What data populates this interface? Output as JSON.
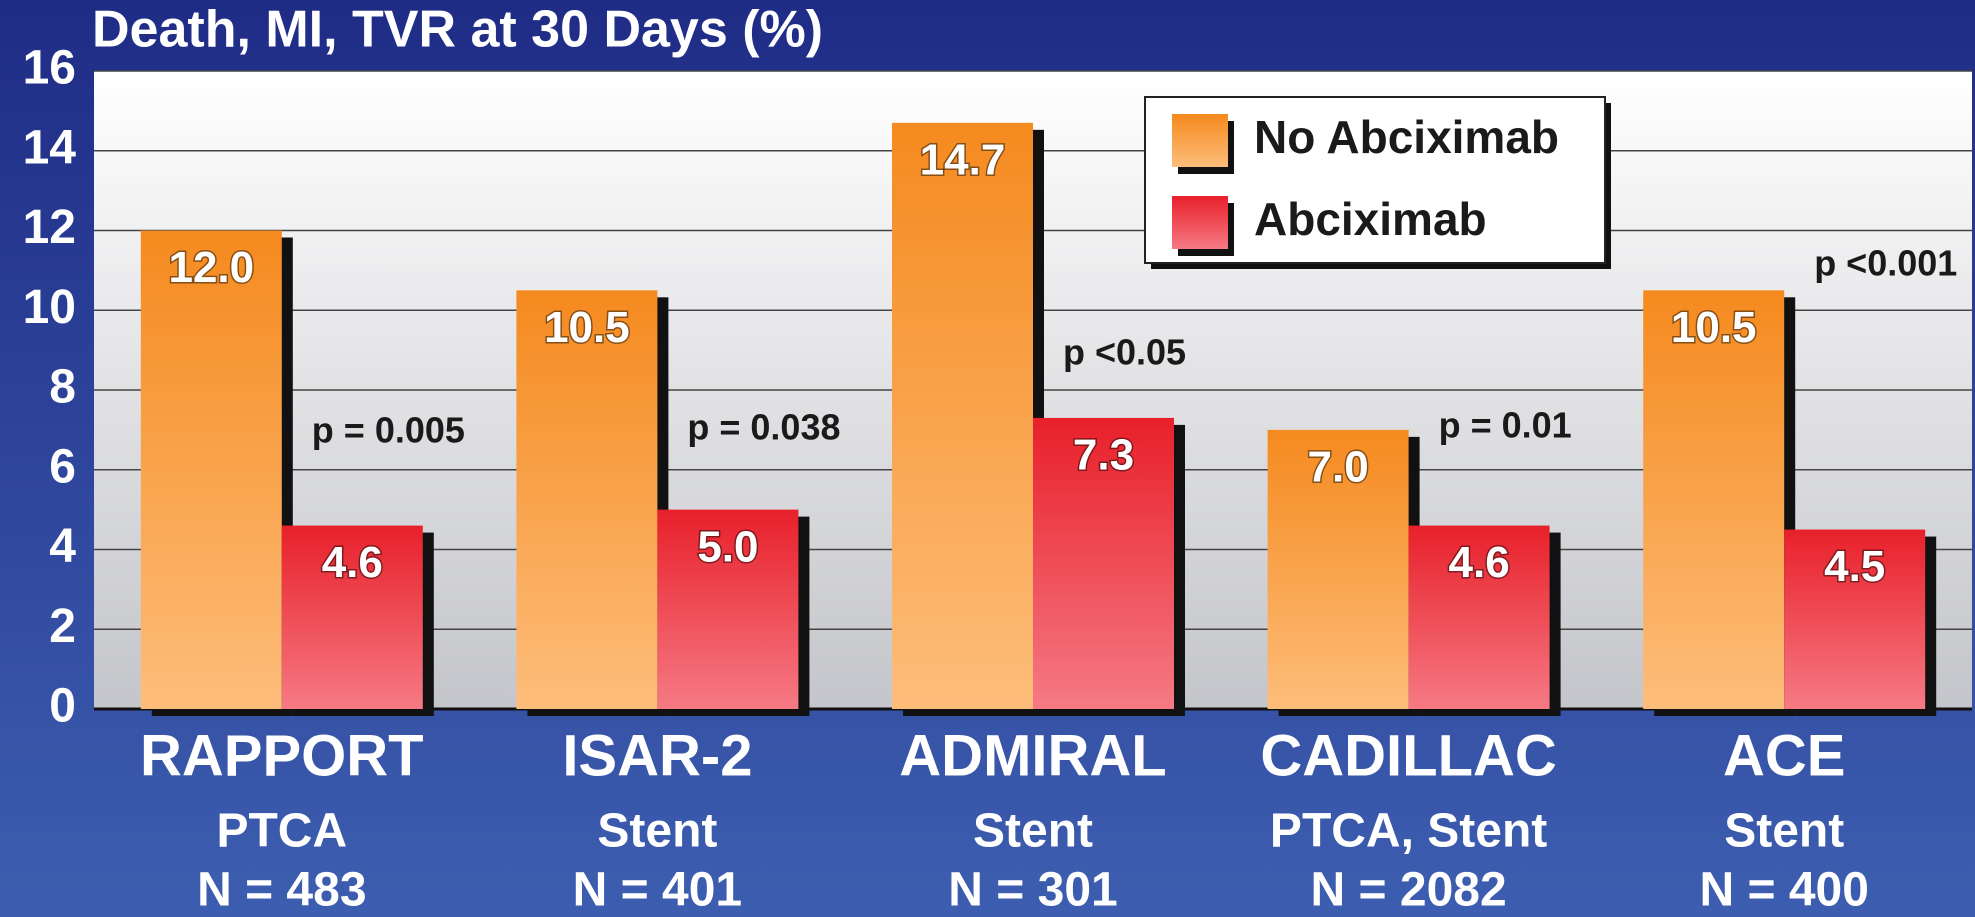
{
  "chart_data": {
    "type": "bar",
    "title": "Death, MI, TVR at 30 Days (%)",
    "categories": [
      "RAPPORT",
      "ISAR-2",
      "ADMIRAL",
      "CADILLAC",
      "ACE"
    ],
    "category_details": [
      "PTCA",
      "Stent",
      "Stent",
      "PTCA, Stent",
      "Stent"
    ],
    "category_n": [
      "N = 483",
      "N = 401",
      "N = 301",
      "N = 2082",
      "N = 400"
    ],
    "annotations": [
      "p = 0.005",
      "p = 0.038",
      "p <0.05",
      "p = 0.01",
      "p <0.001"
    ],
    "series": [
      {
        "name": "No Abciximab",
        "color": "#f58a1f",
        "values": [
          12,
          10.5,
          14.7,
          7,
          10.5
        ],
        "value_labels": [
          "12.0",
          "10.5",
          "14.7",
          "7.0",
          "10.5"
        ]
      },
      {
        "name": "Abciximab",
        "color": "#e8202a",
        "values": [
          4.6,
          5,
          7.3,
          4.6,
          4.5
        ],
        "value_labels": [
          "4.6",
          "5.0",
          "7.3",
          "4.6",
          "4.5"
        ]
      }
    ],
    "ylim": [
      0,
      16
    ],
    "yticks": [
      0,
      2,
      4,
      6,
      8,
      10,
      12,
      14,
      16
    ],
    "grid": true,
    "legend": "top-right"
  }
}
